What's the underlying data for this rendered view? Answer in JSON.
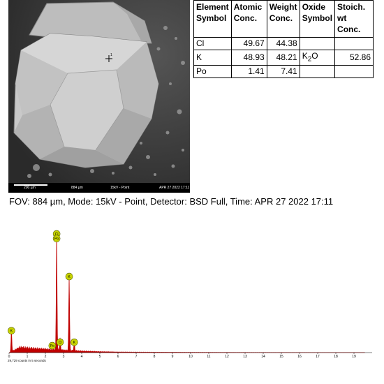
{
  "sem": {
    "scale_label": "200 µm",
    "fov_label": "884 µm",
    "mode_label": "15kV - Point",
    "timestamp_label": "APR 27 2022 17:11",
    "crosshair_label": "1"
  },
  "table": {
    "headers": [
      [
        "Element",
        "Symbol"
      ],
      [
        "Atomic",
        "Conc."
      ],
      [
        "Weight",
        "Conc."
      ],
      [
        "Oxide",
        "Symbol"
      ],
      [
        "Stoich.",
        "wt",
        "Conc."
      ]
    ],
    "rows": [
      {
        "symbol": "Cl",
        "atomic": "49.67",
        "weight": "44.38",
        "oxide": "",
        "oxide_sub": "",
        "oxide_suffix": "",
        "stoich": ""
      },
      {
        "symbol": "K",
        "atomic": "48.93",
        "weight": "48.21",
        "oxide": "K",
        "oxide_sub": "2",
        "oxide_suffix": "O",
        "stoich": "52.86"
      },
      {
        "symbol": "Po",
        "atomic": "1.41",
        "weight": "7.41",
        "oxide": "",
        "oxide_sub": "",
        "oxide_suffix": "",
        "stoich": ""
      }
    ]
  },
  "caption": "FOV: 884 µm, Mode: 15kV - Point, Detector: BSD Full, Time: APR 27 2022 17:11",
  "counts_note": "29,729 counts in 5 seconds",
  "colors": {
    "spectrum_fill": "#c00000",
    "marker_fill": "#c8d400",
    "marker_stroke": "#5a6000"
  },
  "chart_data": {
    "type": "area",
    "xlim": [
      0,
      20
    ],
    "ylim": [
      0,
      1
    ],
    "x_ticks": [
      "0",
      "1",
      "2",
      "3",
      "4",
      "5",
      "6",
      "7",
      "8",
      "9",
      "10",
      "11",
      "12",
      "13",
      "14",
      "15",
      "16",
      "17",
      "18",
      "19"
    ],
    "peaks": [
      {
        "x": 0.13,
        "y": 0.18
      },
      {
        "x": 2.62,
        "y": 1.0
      },
      {
        "x": 2.81,
        "y": 0.1
      },
      {
        "x": 3.31,
        "y": 0.64
      },
      {
        "x": 3.59,
        "y": 0.08
      }
    ],
    "background": [
      {
        "x": 0.4,
        "y": 0.03
      },
      {
        "x": 0.6,
        "y": 0.045
      },
      {
        "x": 1.0,
        "y": 0.04
      },
      {
        "x": 1.5,
        "y": 0.035
      },
      {
        "x": 2.0,
        "y": 0.03
      },
      {
        "x": 3.0,
        "y": 0.022
      },
      {
        "x": 4.0,
        "y": 0.014
      },
      {
        "x": 5.0,
        "y": 0.009
      },
      {
        "x": 6.0,
        "y": 0.006
      },
      {
        "x": 8.0,
        "y": 0.004
      },
      {
        "x": 10.0,
        "y": 0.003
      },
      {
        "x": 13.0,
        "y": 0.002
      },
      {
        "x": 19.5,
        "y": 0.001
      }
    ],
    "markers": [
      {
        "label": "K",
        "x": 0.13,
        "y": 0.19
      },
      {
        "label": "Cl",
        "x": 2.62,
        "y": 1.03
      },
      {
        "label": "Po",
        "x": 2.62,
        "y": 0.99
      },
      {
        "label": "K",
        "x": 3.31,
        "y": 0.66
      },
      {
        "label": "Po",
        "x": 2.38,
        "y": 0.06
      },
      {
        "label": "Cl",
        "x": 2.81,
        "y": 0.09
      },
      {
        "label": "K",
        "x": 3.59,
        "y": 0.09
      }
    ]
  }
}
